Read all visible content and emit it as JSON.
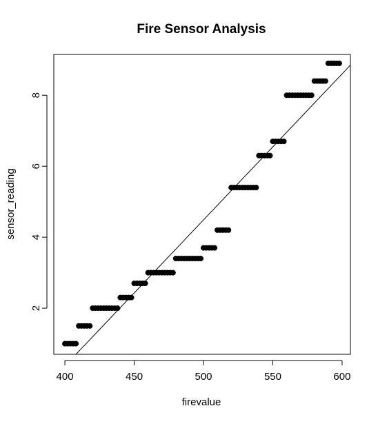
{
  "chart_data": {
    "type": "scatter",
    "title": "Fire Sensor Analysis",
    "xlabel": "firevalue",
    "ylabel": "sensor_reading",
    "xlim": [
      392,
      606
    ],
    "ylim": [
      0.7,
      9.15
    ],
    "x_ticks": [
      400,
      450,
      500,
      550,
      600
    ],
    "y_ticks": [
      2,
      4,
      6,
      8
    ],
    "x_tick_labels": [
      "400",
      "450",
      "500",
      "550",
      "600"
    ],
    "y_tick_labels": [
      "2",
      "4",
      "6",
      "8"
    ],
    "grid": false,
    "legend": "none",
    "point_color": "#000000",
    "line_color": "#000000",
    "points": [
      {
        "x": 400,
        "y": 1.0
      },
      {
        "x": 402,
        "y": 1.0
      },
      {
        "x": 404,
        "y": 1.0
      },
      {
        "x": 406,
        "y": 1.0
      },
      {
        "x": 408,
        "y": 1.0
      },
      {
        "x": 410,
        "y": 1.5
      },
      {
        "x": 412,
        "y": 1.5
      },
      {
        "x": 414,
        "y": 1.5
      },
      {
        "x": 416,
        "y": 1.5
      },
      {
        "x": 418,
        "y": 1.5
      },
      {
        "x": 420,
        "y": 2.0
      },
      {
        "x": 422,
        "y": 2.0
      },
      {
        "x": 424,
        "y": 2.0
      },
      {
        "x": 426,
        "y": 2.0
      },
      {
        "x": 428,
        "y": 2.0
      },
      {
        "x": 430,
        "y": 2.0
      },
      {
        "x": 432,
        "y": 2.0
      },
      {
        "x": 434,
        "y": 2.0
      },
      {
        "x": 436,
        "y": 2.0
      },
      {
        "x": 438,
        "y": 2.0
      },
      {
        "x": 440,
        "y": 2.3
      },
      {
        "x": 442,
        "y": 2.3
      },
      {
        "x": 444,
        "y": 2.3
      },
      {
        "x": 446,
        "y": 2.3
      },
      {
        "x": 448,
        "y": 2.3
      },
      {
        "x": 450,
        "y": 2.7
      },
      {
        "x": 452,
        "y": 2.7
      },
      {
        "x": 454,
        "y": 2.7
      },
      {
        "x": 456,
        "y": 2.7
      },
      {
        "x": 458,
        "y": 2.7
      },
      {
        "x": 460,
        "y": 3.0
      },
      {
        "x": 462,
        "y": 3.0
      },
      {
        "x": 464,
        "y": 3.0
      },
      {
        "x": 466,
        "y": 3.0
      },
      {
        "x": 468,
        "y": 3.0
      },
      {
        "x": 470,
        "y": 3.0
      },
      {
        "x": 472,
        "y": 3.0
      },
      {
        "x": 474,
        "y": 3.0
      },
      {
        "x": 476,
        "y": 3.0
      },
      {
        "x": 478,
        "y": 3.0
      },
      {
        "x": 480,
        "y": 3.4
      },
      {
        "x": 482,
        "y": 3.4
      },
      {
        "x": 484,
        "y": 3.4
      },
      {
        "x": 486,
        "y": 3.4
      },
      {
        "x": 488,
        "y": 3.4
      },
      {
        "x": 490,
        "y": 3.4
      },
      {
        "x": 492,
        "y": 3.4
      },
      {
        "x": 494,
        "y": 3.4
      },
      {
        "x": 496,
        "y": 3.4
      },
      {
        "x": 498,
        "y": 3.4
      },
      {
        "x": 500,
        "y": 3.7
      },
      {
        "x": 502,
        "y": 3.7
      },
      {
        "x": 504,
        "y": 3.7
      },
      {
        "x": 506,
        "y": 3.7
      },
      {
        "x": 508,
        "y": 3.7
      },
      {
        "x": 510,
        "y": 4.2
      },
      {
        "x": 512,
        "y": 4.2
      },
      {
        "x": 514,
        "y": 4.2
      },
      {
        "x": 516,
        "y": 4.2
      },
      {
        "x": 518,
        "y": 4.2
      },
      {
        "x": 520,
        "y": 5.4
      },
      {
        "x": 522,
        "y": 5.4
      },
      {
        "x": 524,
        "y": 5.4
      },
      {
        "x": 526,
        "y": 5.4
      },
      {
        "x": 528,
        "y": 5.4
      },
      {
        "x": 530,
        "y": 5.4
      },
      {
        "x": 532,
        "y": 5.4
      },
      {
        "x": 534,
        "y": 5.4
      },
      {
        "x": 536,
        "y": 5.4
      },
      {
        "x": 538,
        "y": 5.4
      },
      {
        "x": 540,
        "y": 6.3
      },
      {
        "x": 542,
        "y": 6.3
      },
      {
        "x": 544,
        "y": 6.3
      },
      {
        "x": 546,
        "y": 6.3
      },
      {
        "x": 548,
        "y": 6.3
      },
      {
        "x": 550,
        "y": 6.7
      },
      {
        "x": 552,
        "y": 6.7
      },
      {
        "x": 554,
        "y": 6.7
      },
      {
        "x": 556,
        "y": 6.7
      },
      {
        "x": 558,
        "y": 6.7
      },
      {
        "x": 560,
        "y": 8.0
      },
      {
        "x": 562,
        "y": 8.0
      },
      {
        "x": 564,
        "y": 8.0
      },
      {
        "x": 566,
        "y": 8.0
      },
      {
        "x": 568,
        "y": 8.0
      },
      {
        "x": 570,
        "y": 8.0
      },
      {
        "x": 572,
        "y": 8.0
      },
      {
        "x": 574,
        "y": 8.0
      },
      {
        "x": 576,
        "y": 8.0
      },
      {
        "x": 578,
        "y": 8.0
      },
      {
        "x": 580,
        "y": 8.4
      },
      {
        "x": 582,
        "y": 8.4
      },
      {
        "x": 584,
        "y": 8.4
      },
      {
        "x": 586,
        "y": 8.4
      },
      {
        "x": 588,
        "y": 8.4
      },
      {
        "x": 590,
        "y": 8.9
      },
      {
        "x": 592,
        "y": 8.9
      },
      {
        "x": 594,
        "y": 8.9
      },
      {
        "x": 596,
        "y": 8.9
      },
      {
        "x": 598,
        "y": 8.9
      }
    ],
    "fit_line": {
      "x": [
        408,
        606
      ],
      "y": [
        0.7,
        8.85
      ]
    }
  }
}
